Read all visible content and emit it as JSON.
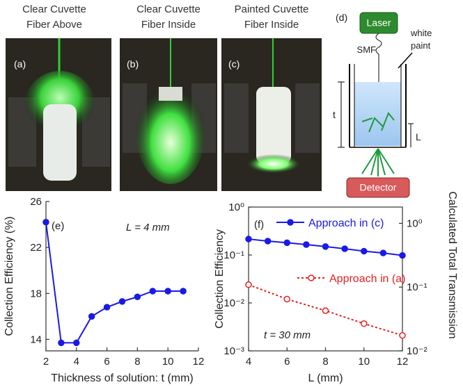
{
  "photos": [
    {
      "label": "(a)",
      "caption": [
        "Clear Cuvette",
        "Fiber Above"
      ]
    },
    {
      "label": "(b)",
      "caption": [
        "Clear Cuvette",
        "Fiber Inside"
      ]
    },
    {
      "label": "(c)",
      "caption": [
        "Painted Cuvette",
        "Fiber Inside"
      ]
    }
  ],
  "diagram": {
    "label": "(d)",
    "laser": "Laser",
    "fiber": "SMF",
    "paint": [
      "white",
      "paint"
    ],
    "thickness": "t",
    "length": "L",
    "detector": "Detector"
  },
  "chart_data": [
    {
      "type": "line",
      "panel": "(e)",
      "annotation": "L = 4 mm",
      "x_label": "Thickness of solution:  t (mm)",
      "y_label": "Collection Efficiency (%)",
      "x": [
        2,
        3,
        4,
        5,
        6,
        7,
        8,
        9,
        10,
        11
      ],
      "series": [
        {
          "name": null,
          "color": "#1a1ae6",
          "marker": "filled",
          "linestyle": "solid",
          "values": [
            24.2,
            13.7,
            13.7,
            16.0,
            16.8,
            17.3,
            17.7,
            18.2,
            18.2,
            18.2
          ]
        }
      ],
      "xlim": [
        2,
        12
      ],
      "xticks": [
        2,
        4,
        6,
        8,
        10,
        12
      ],
      "ylim": [
        13,
        26
      ],
      "yticks": [
        14,
        18,
        22,
        26
      ],
      "box": false
    },
    {
      "type": "line",
      "panel": "(f)",
      "annotation": "t = 30 mm",
      "x_label": "L (mm)",
      "y_label": "Collection  Efficiency",
      "y2_label": "Calculated  Total  Transmission",
      "ylog": true,
      "series": [
        {
          "name": "Approach in (c)",
          "color": "#1a1ae6",
          "marker": "filled",
          "linestyle": "solid",
          "x": [
            4,
            5,
            6,
            7,
            8,
            9,
            10,
            11,
            12
          ],
          "values": [
            0.215,
            0.195,
            0.18,
            0.165,
            0.15,
            0.135,
            0.12,
            0.11,
            0.098
          ]
        },
        {
          "name": "Approach in (a)",
          "color": "#e62020",
          "marker": "open",
          "linestyle": "dotted",
          "x": [
            4,
            6,
            8,
            10,
            12
          ],
          "values": [
            0.024,
            0.012,
            0.0069,
            0.0037,
            0.0021
          ]
        }
      ],
      "xlim": [
        4,
        12
      ],
      "xticks": [
        4,
        6,
        8,
        10,
        12
      ],
      "ylim": [
        0.001,
        1
      ],
      "yticks": [
        {
          "value": 0.001,
          "label": "10⁻³"
        },
        {
          "value": 0.01,
          "label": "10⁻²"
        },
        {
          "value": 0.1,
          "label": "10⁻¹"
        },
        {
          "value": 1,
          "label": "10⁰"
        }
      ],
      "y2lim": [
        0.01,
        1.8
      ],
      "y2ticks": [
        {
          "value": 0.01,
          "label": "10⁻²"
        },
        {
          "value": 0.1,
          "label": "10⁻¹"
        },
        {
          "value": 1,
          "label": "10⁰"
        }
      ],
      "box": true
    }
  ]
}
